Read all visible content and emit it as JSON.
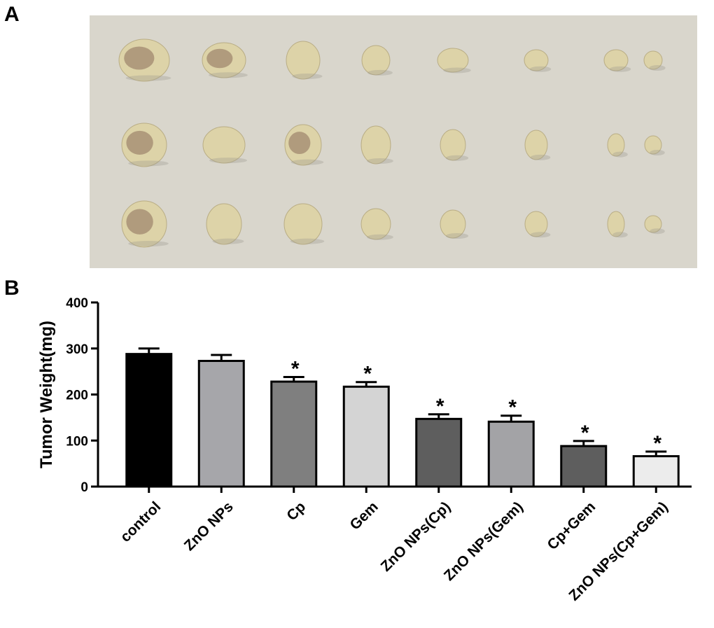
{
  "panels": {
    "a": "A",
    "b": "B"
  },
  "photo": {
    "background_color": "#d9d6cc",
    "tumor_color": "#ddd3a8",
    "tumor_dark_color": "#8a6e5a"
  },
  "chart_data": {
    "type": "bar",
    "ylabel": "Tumor Weight(mg)",
    "xlabel": "",
    "ylim": [
      0,
      400
    ],
    "yticks": [
      0,
      100,
      200,
      300,
      400
    ],
    "categories": [
      "control",
      "ZnO NPs",
      "Cp",
      "Gem",
      "ZnO NPs(Cp)",
      "ZnO NPs(Gem)",
      "Cp+Gem",
      "ZnO NPs(Cp+Gem)"
    ],
    "values": [
      288,
      273,
      228,
      217,
      147,
      141,
      88,
      66
    ],
    "errors": [
      12,
      13,
      10,
      10,
      10,
      13,
      11,
      10
    ],
    "significance": [
      "",
      "",
      "*",
      "*",
      "*",
      "*",
      "*",
      "*"
    ],
    "bar_colors": [
      "#000000",
      "#a6a6aa",
      "#7f7f7f",
      "#d4d4d4",
      "#5e5e5e",
      "#a3a3a6",
      "#5e5e5e",
      "#ececec"
    ],
    "grid": false,
    "legend": "none"
  }
}
